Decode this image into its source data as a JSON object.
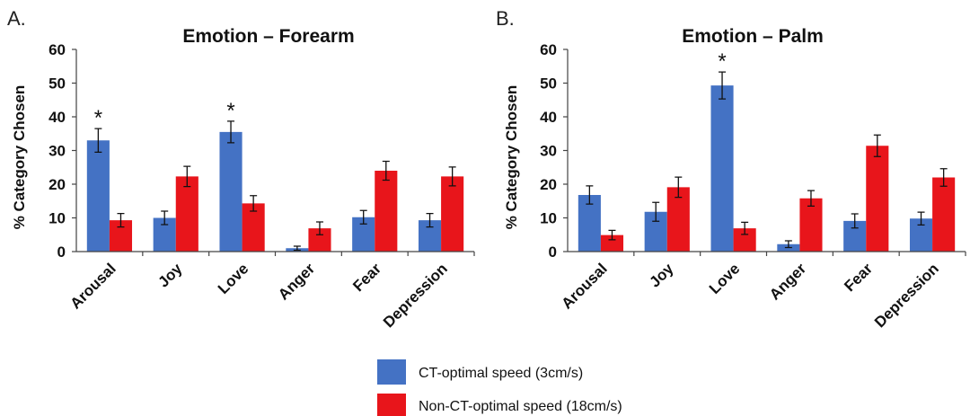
{
  "colors": {
    "series_1": "#4472c4",
    "series_2": "#e8151b"
  },
  "legend": {
    "items": [
      {
        "label": "CT-optimal speed (3cm/s)",
        "color": "#4472c4"
      },
      {
        "label": "Non-CT-optimal speed (18cm/s)",
        "color": "#e8151b"
      }
    ]
  },
  "chart_data": [
    {
      "panel": "A.",
      "type": "bar",
      "title": "Emotion – Forearm",
      "xlabel": "",
      "ylabel": "% Category Chosen",
      "ylim": [
        0,
        60
      ],
      "yticks": [
        0,
        10,
        20,
        30,
        40,
        50,
        60
      ],
      "grid": false,
      "categories": [
        "Arousal",
        "Joy",
        "Love",
        "Anger",
        "Fear",
        "Depression"
      ],
      "series": [
        {
          "name": "CT-optimal speed (3cm/s)",
          "values": [
            33,
            10,
            35.5,
            1,
            10.2,
            9.3
          ],
          "errors": [
            3.5,
            2,
            3.2,
            0.6,
            2,
            2
          ]
        },
        {
          "name": "Non-CT-optimal speed (18cm/s)",
          "values": [
            9.3,
            22.3,
            14.3,
            6.9,
            24,
            22.3
          ],
          "errors": [
            2,
            3,
            2.3,
            1.9,
            2.8,
            2.8
          ]
        }
      ],
      "annotations": [
        {
          "text": "*",
          "category": "Arousal"
        },
        {
          "text": "*",
          "category": "Love"
        }
      ]
    },
    {
      "panel": "B.",
      "type": "bar",
      "title": "Emotion – Palm",
      "xlabel": "",
      "ylabel": "% Category Chosen",
      "ylim": [
        0,
        60
      ],
      "yticks": [
        0,
        10,
        20,
        30,
        40,
        50,
        60
      ],
      "grid": false,
      "categories": [
        "Arousal",
        "Joy",
        "Love",
        "Anger",
        "Fear",
        "Depression"
      ],
      "series": [
        {
          "name": "CT-optimal speed (3cm/s)",
          "values": [
            16.8,
            11.8,
            49.3,
            2.2,
            9.1,
            9.8
          ],
          "errors": [
            2.7,
            2.8,
            4,
            1,
            2.1,
            1.9
          ]
        },
        {
          "name": "Non-CT-optimal speed (18cm/s)",
          "values": [
            4.9,
            19.1,
            6.9,
            15.8,
            31.4,
            22
          ],
          "errors": [
            1.4,
            3,
            1.8,
            2.3,
            3.2,
            2.6
          ]
        }
      ],
      "annotations": [
        {
          "text": "*",
          "category": "Love"
        }
      ]
    }
  ]
}
